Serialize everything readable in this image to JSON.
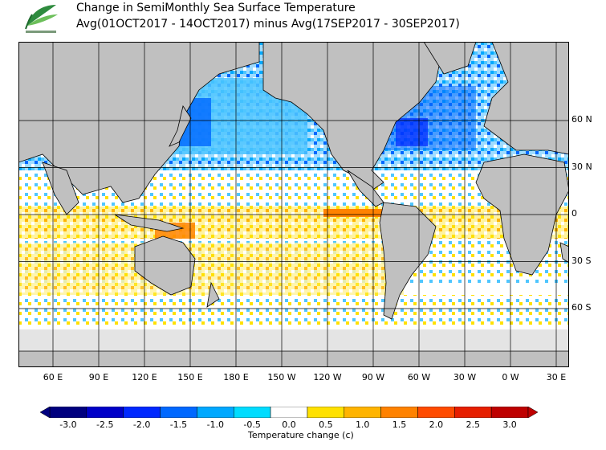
{
  "header": {
    "title": "Change in SemiMonthly Sea Surface Temperature",
    "subtitle": "Avg(01OCT2017 - 14OCT2017) minus Avg(17SEP2017 - 30SEP2017)"
  },
  "map": {
    "lat_labels": [
      "60 N",
      "30 N",
      "0",
      "30 S",
      "60 S"
    ],
    "lat_values": [
      60,
      30,
      0,
      -30,
      -60
    ],
    "lon_labels": [
      "60 E",
      "90 E",
      "120 E",
      "150 E",
      "180 E",
      "150 W",
      "120 W",
      "90 W",
      "60 W",
      "30 W",
      "0 W",
      "30 E"
    ],
    "lon_values": [
      60,
      90,
      120,
      150,
      180,
      210,
      240,
      270,
      300,
      330,
      360,
      390
    ],
    "land_color": "#c0c0c0",
    "ice_color": "#e4e4e4",
    "grid_color": "#000000"
  },
  "colorbar": {
    "label": "Temperature change  (c)",
    "ticks": [
      "-3.0",
      "-2.5",
      "-2.0",
      "-1.5",
      "-1.0",
      "-0.5",
      "0.0",
      "0.5",
      "1.0",
      "1.5",
      "2.0",
      "2.5",
      "3.0"
    ],
    "colors": [
      "#00007f",
      "#0000c8",
      "#0028ff",
      "#0068ff",
      "#00a8ff",
      "#00dcff",
      "#ffffff",
      "#ffe100",
      "#ffb400",
      "#ff8200",
      "#ff4b00",
      "#e61e00",
      "#be0000"
    ]
  }
}
